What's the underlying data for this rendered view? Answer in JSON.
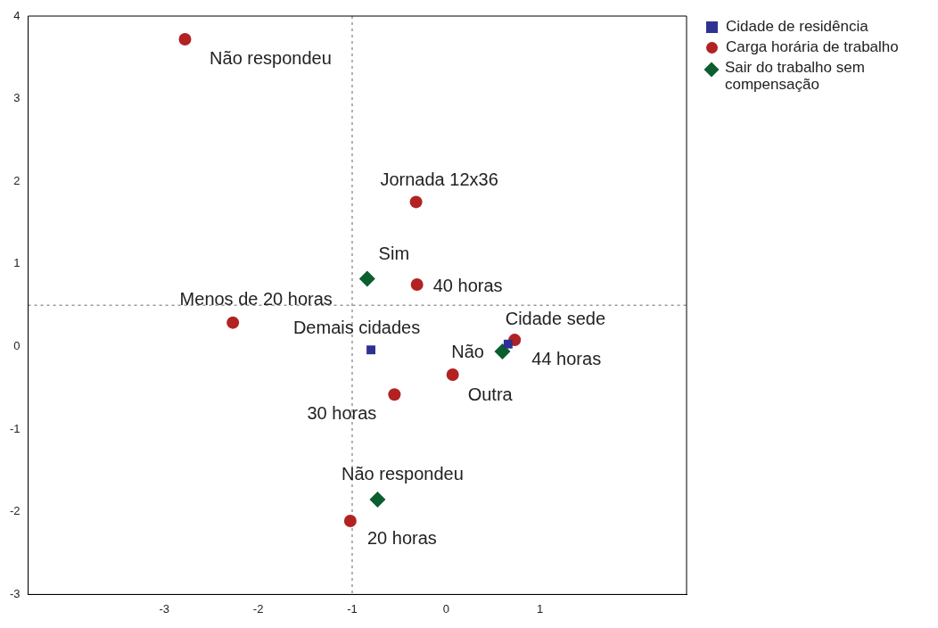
{
  "chart_data": {
    "type": "scatter",
    "xlim": [
      -4.45,
      2.56
    ],
    "ylim": [
      -3,
      4
    ],
    "xticks": [
      -3,
      -2,
      -1,
      0,
      1
    ],
    "yticks": [
      -3,
      -2,
      -1,
      0,
      1,
      2,
      3,
      4
    ],
    "grid": false,
    "legend": "top right",
    "ref_lines": [
      {
        "axis": "x",
        "value": -1,
        "line_style": "dotted",
        "color": "#999999"
      },
      {
        "axis": "y",
        "value": 0.5,
        "line_style": "dotted",
        "color": "#999999"
      }
    ],
    "series": [
      {
        "name": "Cidade de residência",
        "color": "#2e3192",
        "marker": "square",
        "x": [
          -0.8,
          0.66
        ],
        "values": [
          -0.04,
          0.03
        ]
      },
      {
        "name": "Carga horária de trabalho",
        "color": "#b22222",
        "marker": "circle",
        "x": [
          -2.78,
          -0.32,
          -0.31,
          -2.27,
          0.73,
          0.07,
          -0.55,
          -1.02
        ],
        "values": [
          3.72,
          1.75,
          0.75,
          0.29,
          0.08,
          -0.34,
          -0.58,
          -2.11
        ]
      },
      {
        "name": "Sair do trabalho sem compensação",
        "color": "#0b5e2e",
        "marker": "diamond",
        "x": [
          -0.84,
          0.6,
          -0.73
        ],
        "values": [
          0.82,
          -0.06,
          -1.85
        ]
      }
    ],
    "annotations": [
      {
        "text": "Demais cidades",
        "x": -0.8,
        "y": -0.04
      },
      {
        "text": "Cidade sede",
        "x": 0.66,
        "y": 0.03
      },
      {
        "text": "Não respondeu",
        "x": -2.78,
        "y": 3.72
      },
      {
        "text": "Jornada 12x36",
        "x": -0.32,
        "y": 1.75
      },
      {
        "text": "40 horas",
        "x": -0.31,
        "y": 0.75
      },
      {
        "text": "Menos de 20 horas",
        "x": -2.27,
        "y": 0.29
      },
      {
        "text": "44 horas",
        "x": 0.73,
        "y": 0.08
      },
      {
        "text": "Outra",
        "x": 0.07,
        "y": -0.34
      },
      {
        "text": "30 horas",
        "x": -0.55,
        "y": -0.58
      },
      {
        "text": "20 horas",
        "x": -1.02,
        "y": -2.11
      },
      {
        "text": "Sim",
        "x": -0.84,
        "y": 0.82
      },
      {
        "text": "Não",
        "x": 0.6,
        "y": -0.06
      },
      {
        "text": "Não respondeu",
        "x": -0.73,
        "y": -1.85
      }
    ]
  }
}
